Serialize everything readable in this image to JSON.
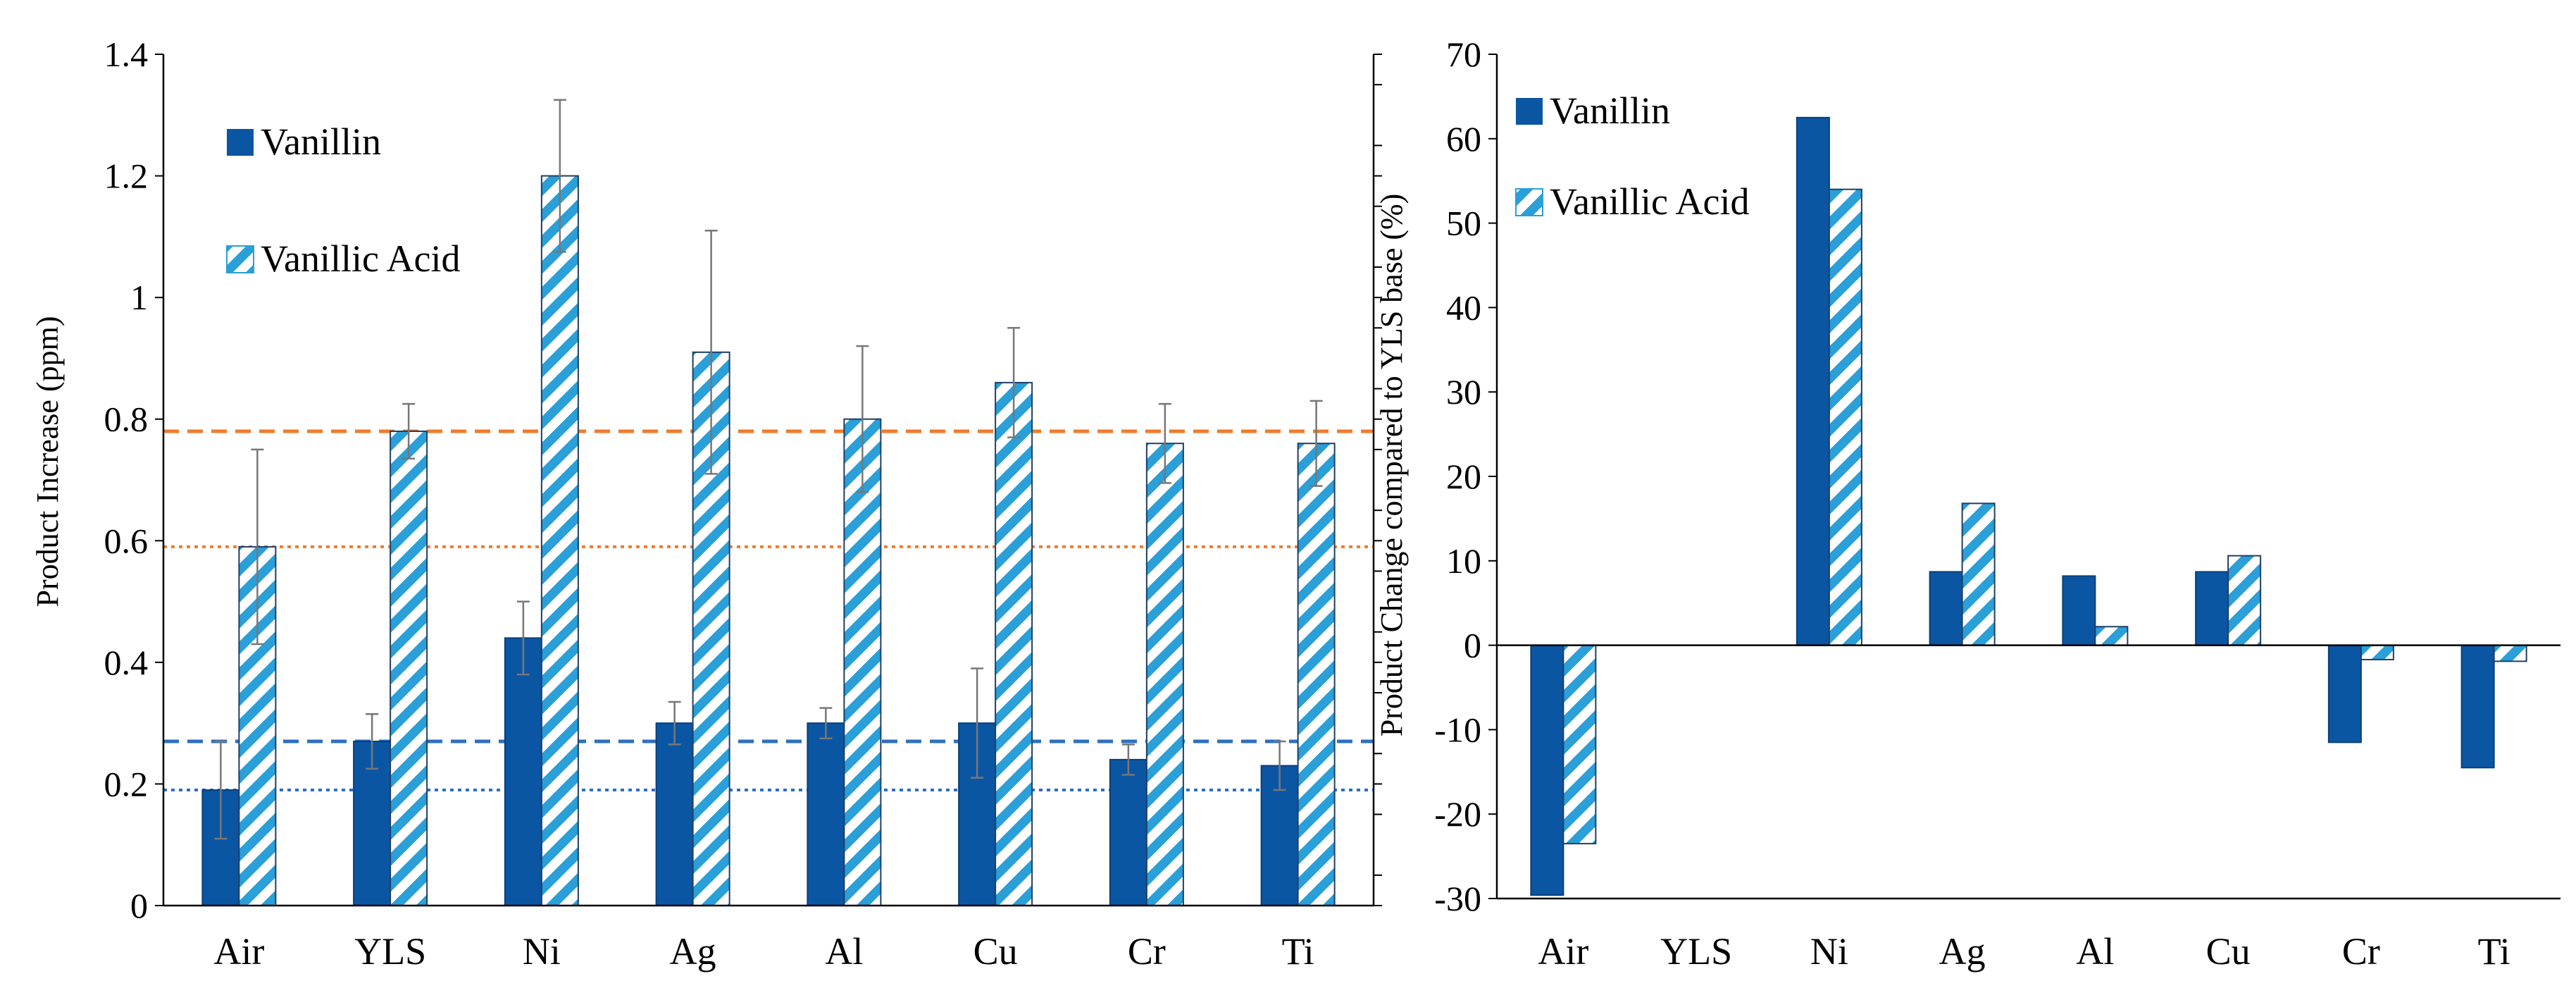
{
  "colors": {
    "vanillin": "#0b56a3",
    "vanillic_stripe": "#2a9fd8",
    "ref_orange": "#f07b2a",
    "ref_blue": "#2e6fc0",
    "axis": "#000000",
    "errorbar": "#777777"
  },
  "chart_data": [
    {
      "id": "left",
      "type": "bar",
      "categories": [
        "Air",
        "YLS",
        "Ni",
        "Ag",
        "Al",
        "Cu",
        "Cr",
        "Ti"
      ],
      "series": [
        {
          "name": "Vanillin",
          "pattern": "solid",
          "values": [
            0.19,
            0.27,
            0.44,
            0.3,
            0.3,
            0.3,
            0.24,
            0.23
          ],
          "errors": [
            0.08,
            0.045,
            0.06,
            0.035,
            0.025,
            0.09,
            0.025,
            0.04
          ]
        },
        {
          "name": "Vanillic Acid",
          "pattern": "striped",
          "values": [
            0.59,
            0.78,
            1.2,
            0.91,
            0.8,
            0.86,
            0.76,
            0.76
          ],
          "errors": [
            0.16,
            0.045,
            0.125,
            0.2,
            0.12,
            0.09,
            0.065,
            0.07
          ]
        }
      ],
      "ylabel": "Product Increase (ppm)",
      "ylim": [
        0,
        1.4
      ],
      "yticks": [
        "0",
        "0.2",
        "0.4",
        "0.6",
        "0.8",
        "1",
        "1.2",
        "1.4"
      ],
      "reference_lines": [
        {
          "value": 0.78,
          "style": "dashed",
          "color": "orange"
        },
        {
          "value": 0.59,
          "style": "dotted",
          "color": "orange"
        },
        {
          "value": 0.27,
          "style": "dashed",
          "color": "blue"
        },
        {
          "value": 0.19,
          "style": "dotted",
          "color": "blue"
        }
      ],
      "legend": [
        "Vanillin",
        "Vanillic Acid"
      ],
      "legend_position": "top-left"
    },
    {
      "id": "right",
      "type": "bar",
      "categories": [
        "Air",
        "YLS",
        "Ni",
        "Ag",
        "Al",
        "Cu",
        "Cr",
        "Ti"
      ],
      "series": [
        {
          "name": "Vanillin",
          "pattern": "solid",
          "values": [
            -29.6,
            0,
            62.5,
            8.7,
            8.2,
            8.7,
            -11.5,
            -14.5
          ]
        },
        {
          "name": "Vanillic Acid",
          "pattern": "striped",
          "values": [
            -23.5,
            0,
            54.0,
            16.8,
            2.2,
            10.6,
            -1.7,
            -1.9
          ]
        }
      ],
      "ylabel": "Product Change compared to YLS base (%)",
      "ylim": [
        -30,
        70
      ],
      "yticks": [
        "-30",
        "-20",
        "-10",
        "0",
        "10",
        "20",
        "30",
        "40",
        "50",
        "60",
        "70"
      ],
      "legend": [
        "Vanillin",
        "Vanillic Acid"
      ],
      "legend_position": "top-left"
    }
  ]
}
